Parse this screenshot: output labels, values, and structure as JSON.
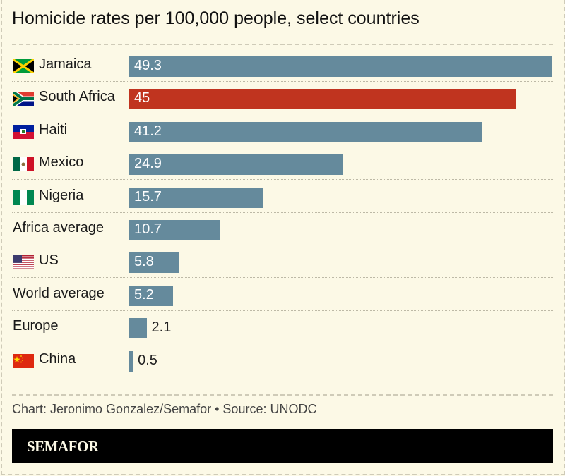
{
  "chart_data": {
    "type": "bar",
    "orientation": "horizontal",
    "title": "Homicide rates per 100,000 people, select countries",
    "categories": [
      "Jamaica",
      "South Africa",
      "Haiti",
      "Mexico",
      "Nigeria",
      "Africa average",
      "US",
      "World average",
      "Europe",
      "China"
    ],
    "values": [
      49.3,
      45,
      41.2,
      24.9,
      15.7,
      10.7,
      5.8,
      5.2,
      2.1,
      0.5
    ],
    "value_labels": [
      "49.3",
      "45",
      "41.2",
      "24.9",
      "15.7",
      "10.7",
      "5.8",
      "5.2",
      "2.1",
      "0.5"
    ],
    "flags": [
      "jamaica-flag",
      "south-africa-flag",
      "haiti-flag",
      "mexico-flag",
      "nigeria-flag",
      null,
      "us-flag",
      null,
      null,
      "china-flag"
    ],
    "highlight": "South Africa",
    "xlim": [
      0,
      49.3
    ],
    "grid": false,
    "colors": {
      "default": "#658a9c",
      "highlight": "#c0341f",
      "background": "#fcf9e6"
    }
  },
  "footer": {
    "source": "Chart: Jeronimo Gonzalez/Semafor • Source: UNODC",
    "brand": "SEMAFOR"
  }
}
